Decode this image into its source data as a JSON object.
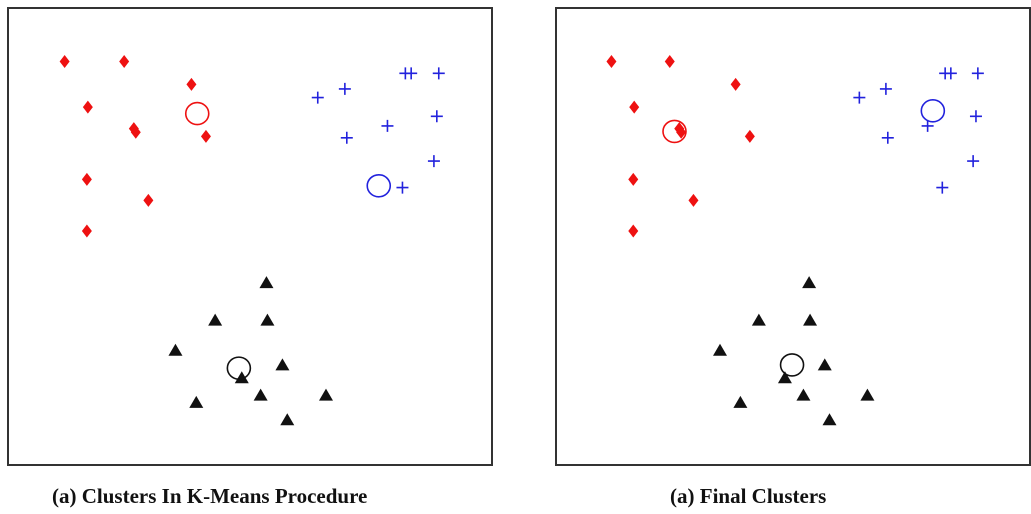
{
  "colors": {
    "cluster_red": "#ee1111",
    "cluster_blue": "#2222dd",
    "cluster_black": "#111111",
    "frame": "#333333"
  },
  "chart_data": [
    {
      "type": "scatter",
      "title": "(a) Clusters In  K-Means Procedure",
      "xlabel": "",
      "ylabel": "",
      "xlim": [
        0,
        100
      ],
      "ylim": [
        0,
        100
      ],
      "grid": false,
      "series": [
        {
          "marker": "diamond",
          "color": "#ee1111",
          "points": [
            [
              11.7,
              88.3
            ],
            [
              24.0,
              88.3
            ],
            [
              37.9,
              83.3
            ],
            [
              16.5,
              78.3
            ],
            [
              26.0,
              73.6
            ],
            [
              26.4,
              72.8
            ],
            [
              40.9,
              71.9
            ],
            [
              16.3,
              62.5
            ],
            [
              29.0,
              57.9
            ],
            [
              16.3,
              51.2
            ]
          ]
        },
        {
          "marker": "plus",
          "color": "#2222dd",
          "points": [
            [
              82.1,
              85.7
            ],
            [
              83.3,
              85.7
            ],
            [
              89.0,
              85.7
            ],
            [
              69.6,
              82.3
            ],
            [
              64.0,
              80.4
            ],
            [
              88.6,
              76.3
            ],
            [
              78.4,
              74.2
            ],
            [
              70.0,
              71.6
            ],
            [
              88.0,
              66.5
            ],
            [
              81.5,
              60.7
            ]
          ]
        },
        {
          "marker": "triangle",
          "color": "#111111",
          "points": [
            [
              53.4,
              39.9
            ],
            [
              42.8,
              31.7
            ],
            [
              53.6,
              31.7
            ],
            [
              34.6,
              25.1
            ],
            [
              56.7,
              21.9
            ],
            [
              48.3,
              19.1
            ],
            [
              65.7,
              15.3
            ],
            [
              52.2,
              15.3
            ],
            [
              38.9,
              13.7
            ],
            [
              57.7,
              9.9
            ]
          ]
        }
      ],
      "centroids": [
        {
          "color": "#ee1111",
          "x": 39.1,
          "y": 76.9
        },
        {
          "color": "#2222dd",
          "x": 76.6,
          "y": 61.1
        },
        {
          "color": "#111111",
          "x": 47.7,
          "y": 21.2
        }
      ]
    },
    {
      "type": "scatter",
      "title": "(a)  Final Clusters",
      "xlabel": "",
      "ylabel": "",
      "xlim": [
        0,
        100
      ],
      "ylim": [
        0,
        100
      ],
      "grid": false,
      "series": [
        {
          "marker": "diamond",
          "color": "#ee1111",
          "points": [
            [
              11.7,
              88.3
            ],
            [
              24.0,
              88.3
            ],
            [
              37.9,
              83.3
            ],
            [
              16.5,
              78.3
            ],
            [
              26.0,
              73.6
            ],
            [
              26.4,
              72.8
            ],
            [
              40.9,
              71.9
            ],
            [
              16.3,
              62.5
            ],
            [
              29.0,
              57.9
            ],
            [
              16.3,
              51.2
            ]
          ]
        },
        {
          "marker": "plus",
          "color": "#2222dd",
          "points": [
            [
              82.1,
              85.7
            ],
            [
              83.3,
              85.7
            ],
            [
              89.0,
              85.7
            ],
            [
              69.6,
              82.3
            ],
            [
              64.0,
              80.4
            ],
            [
              88.6,
              76.3
            ],
            [
              78.4,
              74.2
            ],
            [
              70.0,
              71.6
            ],
            [
              88.0,
              66.5
            ],
            [
              81.5,
              60.7
            ]
          ]
        },
        {
          "marker": "triangle",
          "color": "#111111",
          "points": [
            [
              53.4,
              39.9
            ],
            [
              42.8,
              31.7
            ],
            [
              53.6,
              31.7
            ],
            [
              34.6,
              25.1
            ],
            [
              56.7,
              21.9
            ],
            [
              48.3,
              19.1
            ],
            [
              65.7,
              15.3
            ],
            [
              52.2,
              15.3
            ],
            [
              38.9,
              13.7
            ],
            [
              57.7,
              9.9
            ]
          ]
        }
      ],
      "centroids": [
        {
          "color": "#ee1111",
          "x": 25.0,
          "y": 73.0
        },
        {
          "color": "#2222dd",
          "x": 79.5,
          "y": 77.5
        },
        {
          "color": "#111111",
          "x": 49.8,
          "y": 21.9
        }
      ]
    }
  ]
}
